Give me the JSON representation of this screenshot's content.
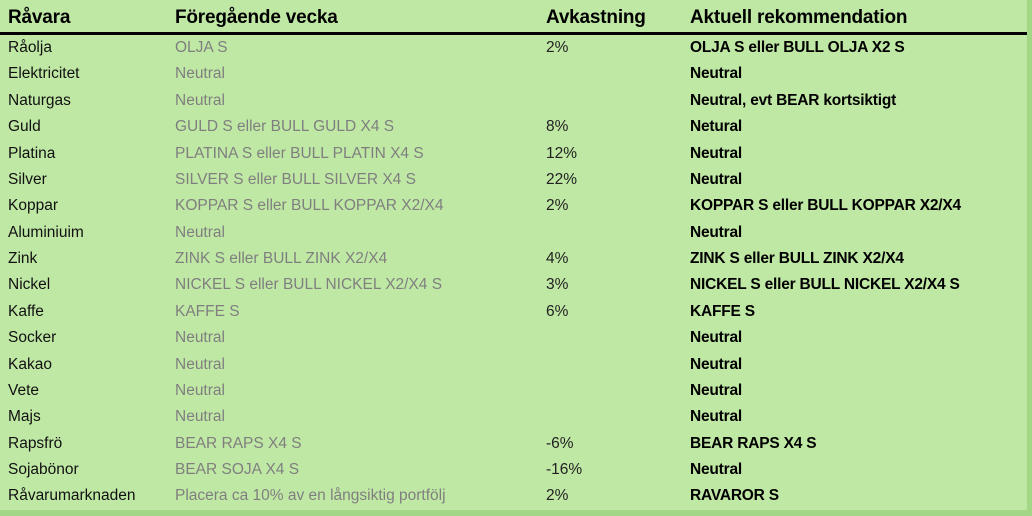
{
  "colors": {
    "background": "#c0e8a5",
    "edge_strip": "#a3d786",
    "header_text": "#000000",
    "commodity_text": "#111111",
    "previous_week_text": "#7f7f7f",
    "return_text": "#212121",
    "recommendation_text": "#000000",
    "header_rule": "#000000"
  },
  "table": {
    "columns": [
      {
        "key": "commodity",
        "label": "Råvara"
      },
      {
        "key": "previous_week",
        "label": "Föregående vecka"
      },
      {
        "key": "return",
        "label": "Avkastning"
      },
      {
        "key": "current_recommendation",
        "label": "Aktuell rekommendation"
      }
    ],
    "rows": [
      {
        "commodity": "Råolja",
        "previous_week": "OLJA S",
        "return": "2%",
        "current_recommendation": "OLJA S eller BULL OLJA X2 S"
      },
      {
        "commodity": "Elektricitet",
        "previous_week": "Neutral",
        "return": "",
        "current_recommendation": "Neutral"
      },
      {
        "commodity": "Naturgas",
        "previous_week": "Neutral",
        "return": "",
        "current_recommendation": "Neutral, evt BEAR kortsiktigt"
      },
      {
        "commodity": "Guld",
        "previous_week": "GULD S eller BULL GULD X4 S",
        "return": "8%",
        "current_recommendation": "Netural"
      },
      {
        "commodity": "Platina",
        "previous_week": "PLATINA S eller BULL PLATIN X4 S",
        "return": "12%",
        "current_recommendation": "Neutral"
      },
      {
        "commodity": "Silver",
        "previous_week": "SILVER S eller BULL SILVER X4 S",
        "return": "22%",
        "current_recommendation": "Neutral"
      },
      {
        "commodity": "Koppar",
        "previous_week": "KOPPAR S eller BULL KOPPAR X2/X4",
        "return": "2%",
        "current_recommendation": "KOPPAR S eller BULL KOPPAR X2/X4"
      },
      {
        "commodity": "Aluminiuim",
        "previous_week": "Neutral",
        "return": "",
        "current_recommendation": "Neutral"
      },
      {
        "commodity": "Zink",
        "previous_week": "ZINK S eller BULL ZINK X2/X4",
        "return": "4%",
        "current_recommendation": "ZINK S eller BULL ZINK X2/X4"
      },
      {
        "commodity": "Nickel",
        "previous_week": "NICKEL S eller BULL NICKEL X2/X4 S",
        "return": "3%",
        "current_recommendation": "NICKEL S eller BULL NICKEL X2/X4 S"
      },
      {
        "commodity": "Kaffe",
        "previous_week": "KAFFE S",
        "return": "6%",
        "current_recommendation": "KAFFE S"
      },
      {
        "commodity": "Socker",
        "previous_week": "Neutral",
        "return": "",
        "current_recommendation": "Neutral"
      },
      {
        "commodity": "Kakao",
        "previous_week": "Neutral",
        "return": "",
        "current_recommendation": "Neutral"
      },
      {
        "commodity": "Vete",
        "previous_week": "Neutral",
        "return": "",
        "current_recommendation": "Neutral"
      },
      {
        "commodity": "Majs",
        "previous_week": "Neutral",
        "return": "",
        "current_recommendation": "Neutral"
      },
      {
        "commodity": "Rapsfrö",
        "previous_week": "BEAR RAPS X4 S",
        "return": "-6%",
        "current_recommendation": "BEAR RAPS X4 S"
      },
      {
        "commodity": "Sojabönor",
        "previous_week": "BEAR SOJA X4 S",
        "return": "-16%",
        "current_recommendation": "Neutral"
      },
      {
        "commodity": "Råvarumarknaden",
        "previous_week": "Placera ca 10% av en långsiktig portfölj",
        "return": "2%",
        "current_recommendation": "RAVAROR S"
      }
    ]
  }
}
